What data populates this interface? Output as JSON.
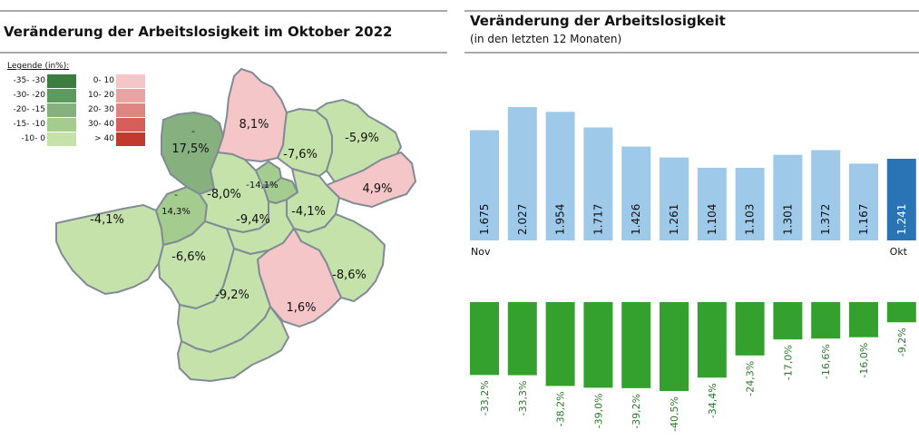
{
  "left_panel": {
    "title": "Veränderung der Arbeitslosigkeit im Oktober 2022",
    "legend": {
      "title": "Legende (in%):",
      "negative": [
        {
          "label": "-35- -30",
          "color": "#3b7d3f"
        },
        {
          "label": "-30- -20",
          "color": "#5c9a5e"
        },
        {
          "label": "-20- -15",
          "color": "#86b07d"
        },
        {
          "label": "-15- -10",
          "color": "#a3cc8e"
        },
        {
          "label": "-10- 0",
          "color": "#c4e2aa"
        }
      ],
      "positive": [
        {
          "label": "0- 10",
          "color": "#f5c6c8"
        },
        {
          "label": "10- 20",
          "color": "#e8a3a3"
        },
        {
          "label": "20- 30",
          "color": "#de8582"
        },
        {
          "label": "30- 40",
          "color": "#d35e5a"
        },
        {
          "label": "> 40",
          "color": "#c2392f"
        }
      ]
    },
    "map": {
      "district_labels": [
        "-",
        "17,5%",
        "8,1%",
        "-7,6%",
        "-5,9%",
        "4,9%",
        "-14,1%",
        "-",
        "14,3%",
        "-8,0%",
        "-4,1%",
        "-9,4%",
        "-4,1%",
        "-6,6%",
        "-8,6%",
        "-9,2%",
        "1,6%"
      ]
    }
  },
  "right_panel": {
    "title": "Veränderung der Arbeitslosigkeit",
    "subtitle": "(in den letzten 12 Monaten)",
    "x_start_label": "Nov",
    "x_end_label": "Okt"
  },
  "colors": {
    "bar_regular": "#9ec9e9",
    "bar_highlight": "#2a74b5",
    "bar_change": "#34a12f",
    "change_label": "#2b7a2b",
    "map_green": "#c4e2aa",
    "map_green_mid": "#a3cc8e",
    "map_green_dark": "#86b07d",
    "map_pink": "#f5c6c8",
    "map_border": "#808b96"
  },
  "chart_data": [
    {
      "type": "bar",
      "title": "Veränderung der Arbeitslosigkeit",
      "subtitle": "(in den letzten 12 Monaten)",
      "series": [
        {
          "values": [
            1.675,
            2.027,
            1.954,
            1.717,
            1.426,
            1.261,
            1.104,
            1.103,
            1.301,
            1.372,
            1.167,
            1.241
          ]
        }
      ],
      "value_labels": [
        "1.675",
        "2.027",
        "1.954",
        "1.717",
        "1.426",
        "1.261",
        "1.104",
        "1.103",
        "1.301",
        "1.372",
        "1.167",
        "1.241"
      ],
      "x_labels": [
        "Nov",
        "Okt"
      ],
      "highlight_last": true,
      "grid": false
    },
    {
      "type": "bar",
      "series": [
        {
          "values": [
            -33.2,
            -33.3,
            -38.2,
            -39.0,
            -39.2,
            -40.5,
            -34.4,
            -24.3,
            -17.0,
            -16.6,
            -16.0,
            -9.2
          ]
        }
      ],
      "value_labels": [
        "-33,2%",
        "-33,3%",
        "-38,2%",
        "-39,0%",
        "-39,2%",
        "-40,5%",
        "-34,4%",
        "-24,3%",
        "-17,0%",
        "-16,6%",
        "-16,0%",
        "-9,2%"
      ],
      "grid": false
    }
  ]
}
